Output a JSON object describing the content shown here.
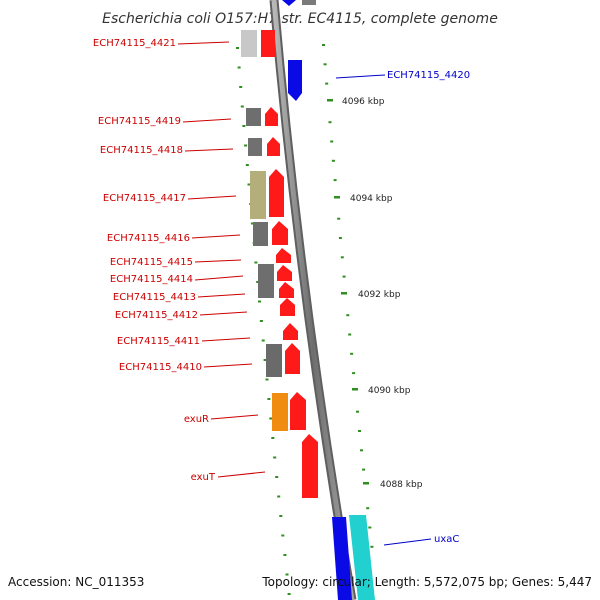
{
  "title": "Escherichia coli O157:H7 str. EC4115, complete genome",
  "footer": {
    "accession": "Accession: NC_011353",
    "topology": "Topology: circular; Length: 5,572,075 bp; Genes: 5,447"
  },
  "scale_labels": [
    "4096 kbp",
    "4094 kbp",
    "4092 kbp",
    "4090 kbp",
    "4088 kbp"
  ],
  "colors": {
    "backbone": "#8a8a8a",
    "tick": "#2f8f1f",
    "forward_label": "#cc0000",
    "reverse_label": "#0000cc"
  },
  "genes": [
    {
      "label": "ECH74115_4421",
      "strand": "forward",
      "color": "#ff1a1a"
    },
    {
      "label": "ECH74115_4420",
      "strand": "reverse",
      "color": "#0a0ae6"
    },
    {
      "label": "ECH74115_4419",
      "strand": "forward",
      "color": "#ff1a1a"
    },
    {
      "label": "ECH74115_4418",
      "strand": "forward",
      "color": "#ff1a1a"
    },
    {
      "label": "ECH74115_4417",
      "strand": "forward",
      "color": "#ff1a1a"
    },
    {
      "label": "ECH74115_4416",
      "strand": "forward",
      "color": "#ff1a1a"
    },
    {
      "label": "ECH74115_4415",
      "strand": "forward",
      "color": "#ff1a1a"
    },
    {
      "label": "ECH74115_4414",
      "strand": "forward",
      "color": "#ff1a1a"
    },
    {
      "label": "ECH74115_4413",
      "strand": "forward",
      "color": "#ff1a1a"
    },
    {
      "label": "ECH74115_4412",
      "strand": "forward",
      "color": "#ff1a1a"
    },
    {
      "label": "ECH74115_4411",
      "strand": "forward",
      "color": "#ff1a1a"
    },
    {
      "label": "ECH74115_4410",
      "strand": "forward",
      "color": "#ff1a1a"
    },
    {
      "label": "exuR",
      "strand": "forward",
      "color": "#ff1a1a"
    },
    {
      "label": "exuT",
      "strand": "forward",
      "color": "#ff1a1a"
    },
    {
      "label": "uxaC",
      "strand": "reverse",
      "color": "#0a0ae6"
    }
  ]
}
